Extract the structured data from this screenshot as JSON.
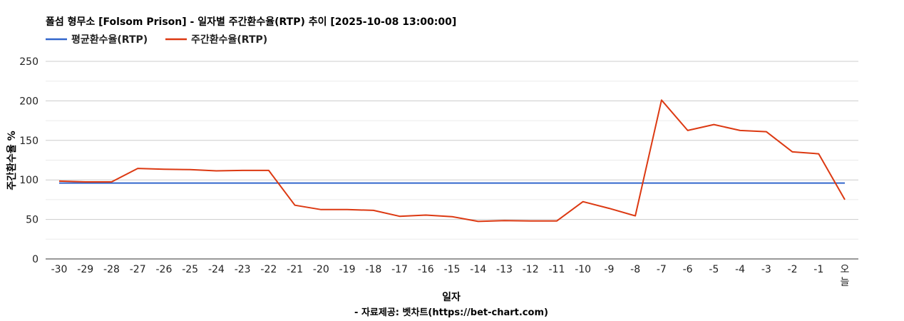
{
  "chart_data": {
    "type": "line",
    "title": "폴섬 형무소 [Folsom Prison] - 일자별 주간환수율(RTP) 추이 [2025-10-08 13:00:00]",
    "xlabel": "일자",
    "ylabel": "주간환수율 %",
    "footer": "- 자료제공: 벳차트(https://bet-chart.com)",
    "ylim": [
      0,
      250
    ],
    "yticks": [
      "0",
      "50",
      "100",
      "150",
      "200",
      "250"
    ],
    "yticks_values": [
      0,
      50,
      100,
      150,
      200,
      250
    ],
    "categories": [
      "-30",
      "-29",
      "-28",
      "-27",
      "-26",
      "-25",
      "-24",
      "-23",
      "-22",
      "-21",
      "-20",
      "-19",
      "-18",
      "-17",
      "-16",
      "-15",
      "-14",
      "-13",
      "-12",
      "-11",
      "-10",
      "-9",
      "-8",
      "-7",
      "-6",
      "-5",
      "-4",
      "-3",
      "-2",
      "-1",
      "오늘"
    ],
    "legend_position": "top-left",
    "grid": true,
    "series": [
      {
        "name": "평균환수율(RTP)",
        "color": "#3366cc",
        "values": [
          96,
          96,
          96,
          96,
          96,
          96,
          96,
          96,
          96,
          96,
          96,
          96,
          96,
          96,
          96,
          96,
          96,
          96,
          96,
          96,
          96,
          96,
          96,
          96,
          96,
          96,
          96,
          96,
          96,
          96,
          96
        ]
      },
      {
        "name": "주간환수율(RTP)",
        "color": "#dc3912",
        "values": [
          98.5,
          97.5,
          97.5,
          114.5,
          113.5,
          113,
          111.5,
          112,
          112,
          68,
          62.5,
          62.5,
          61.5,
          54,
          55.5,
          53.5,
          47.5,
          48.5,
          48,
          48,
          72.5,
          64,
          54.5,
          201,
          162.5,
          170,
          162.5,
          161,
          135.5,
          133,
          75
        ]
      }
    ]
  }
}
